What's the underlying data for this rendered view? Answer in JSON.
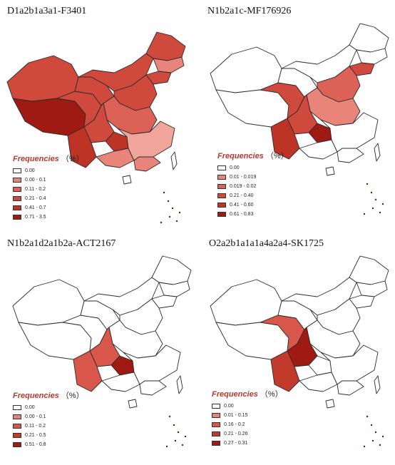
{
  "panels": [
    {
      "title": "D1a2b1a3a1-F3401",
      "legend": {
        "title": "Frequencies",
        "unit": "（%）",
        "items": [
          {
            "label": "0.00",
            "color": "#ffffff"
          },
          {
            "label": "0.00 - 0.1",
            "color": "#e8847a"
          },
          {
            "label": "0.11 - 0.2",
            "color": "#dc6156"
          },
          {
            "label": "0.21 - 0.4",
            "color": "#cf4a3c"
          },
          {
            "label": "0.41 - 0.7",
            "color": "#bd3427"
          },
          {
            "label": "0.71 - 3.5",
            "color": "#9e1a12"
          }
        ]
      }
    },
    {
      "title": "N1b2a1c-MF176926",
      "legend": {
        "title": "Frequencies",
        "unit": "（%）",
        "items": [
          {
            "label": "0.00",
            "color": "#ffffff"
          },
          {
            "label": "0.01 - 0.019",
            "color": "#e8847a"
          },
          {
            "label": "0.019 - 0.02",
            "color": "#dc6156"
          },
          {
            "label": "0.21 - 0.40",
            "color": "#cf4a3c"
          },
          {
            "label": "0.41 - 0.60",
            "color": "#bd3427"
          },
          {
            "label": "0.61 - 0.83",
            "color": "#9e1a12"
          }
        ]
      }
    },
    {
      "title": "N1b2a1d2a1b2a-ACT2167",
      "legend": {
        "title": "Frequencies",
        "unit": "（%）",
        "items": [
          {
            "label": "0.00",
            "color": "#ffffff"
          },
          {
            "label": "0.00 - 0.1",
            "color": "#e8847a"
          },
          {
            "label": "0.11 - 0.2",
            "color": "#d8564a"
          },
          {
            "label": "0.21 - 0.5",
            "color": "#c23a2c"
          },
          {
            "label": "0.51 - 0.8",
            "color": "#9e1a12"
          }
        ]
      }
    },
    {
      "title": "O2a2b1a1a1a4a2a4-SK1725",
      "legend": {
        "title": "Frequencies",
        "unit": "（%）",
        "items": [
          {
            "label": "0.00",
            "color": "#ffffff"
          },
          {
            "label": "0.01 - 0.15",
            "color": "#e8847a"
          },
          {
            "label": "0.16 - 0.2",
            "color": "#d8564a"
          },
          {
            "label": "0.21 - 0.26",
            "color": "#c23a2c"
          },
          {
            "label": "0.27 - 0.31",
            "color": "#9e1a12"
          }
        ]
      }
    }
  ],
  "map_shading": [
    {
      "xinjiang": "#cf4a3c",
      "tibet": "#9e1a12",
      "qinghai": "#cf4a3c",
      "gansu": "#cf4a3c",
      "inner_mongolia": "#cf4a3c",
      "heilongjiang": "#cf4a3c",
      "jilin": "#e8847a",
      "liaoning": "#cf4a3c",
      "north_china": "#cf4a3c",
      "central": "#dc6156",
      "sichuan": "#cf4a3c",
      "yunnan": "#bd3427",
      "southeast": "#f0a49a",
      "south": "#e8847a",
      "guangxi": "#e8847a",
      "guizhou": "#bd3427",
      "taiwan": "#ffffff",
      "hainan": "#ffffff"
    },
    {
      "xinjiang": "#ffffff",
      "tibet": "#ffffff",
      "qinghai": "#cf4a3c",
      "gansu": "#ffffff",
      "inner_mongolia": "#ffffff",
      "heilongjiang": "#ffffff",
      "jilin": "#ffffff",
      "liaoning": "#cf4a3c",
      "north_china": "#dc6156",
      "central": "#e8847a",
      "sichuan": "#cf4a3c",
      "yunnan": "#bd3427",
      "southeast": "#ffffff",
      "south": "#ffffff",
      "guangxi": "#ffffff",
      "guizhou": "#9e1a12",
      "taiwan": "#ffffff",
      "hainan": "#ffffff"
    },
    {
      "xinjiang": "#ffffff",
      "tibet": "#ffffff",
      "qinghai": "#ffffff",
      "gansu": "#ffffff",
      "inner_mongolia": "#ffffff",
      "heilongjiang": "#ffffff",
      "jilin": "#ffffff",
      "liaoning": "#ffffff",
      "north_china": "#ffffff",
      "central": "#ffffff",
      "sichuan": "#d8564a",
      "yunnan": "#d8564a",
      "southeast": "#ffffff",
      "south": "#ffffff",
      "guangxi": "#ffffff",
      "guizhou": "#9e1a12",
      "taiwan": "#ffffff",
      "hainan": "#ffffff"
    },
    {
      "xinjiang": "#ffffff",
      "tibet": "#ffffff",
      "qinghai": "#d8564a",
      "gansu": "#ffffff",
      "inner_mongolia": "#ffffff",
      "heilongjiang": "#ffffff",
      "jilin": "#ffffff",
      "liaoning": "#ffffff",
      "north_china": "#ffffff",
      "central": "#ffffff",
      "sichuan": "#9e1a12",
      "yunnan": "#c23a2c",
      "southeast": "#ffffff",
      "south": "#ffffff",
      "guangxi": "#ffffff",
      "guizhou": "#ffffff",
      "taiwan": "#ffffff",
      "hainan": "#ffffff"
    }
  ]
}
